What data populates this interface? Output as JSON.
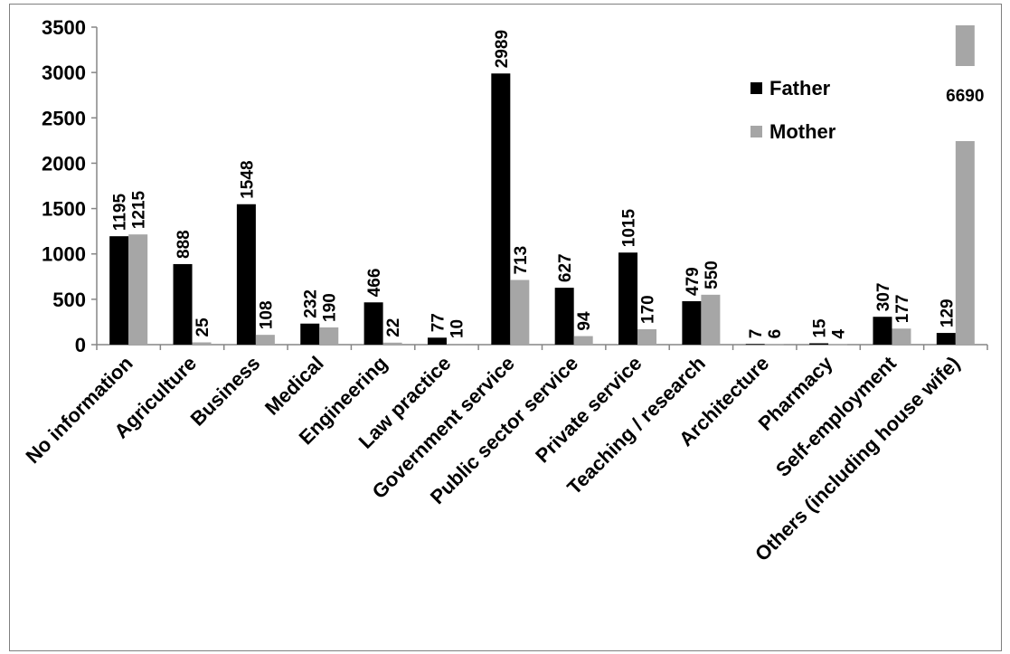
{
  "chart_data": {
    "type": "bar",
    "categories": [
      "No information",
      "Agriculture",
      "Business",
      "Medical",
      "Engineering",
      "Law practice",
      "Government service",
      "Public sector service",
      "Private service",
      "Teaching / research",
      "Architecture",
      "Pharmacy",
      "Self-employment",
      "Others (including house wife)"
    ],
    "series": [
      {
        "name": "Father",
        "color": "#000000",
        "values": [
          1195,
          888,
          1548,
          232,
          466,
          77,
          2989,
          627,
          1015,
          479,
          7,
          15,
          307,
          129
        ]
      },
      {
        "name": "Mother",
        "color": "#a6a6a6",
        "values": [
          1215,
          25,
          108,
          190,
          22,
          10,
          713,
          94,
          170,
          550,
          6,
          4,
          177,
          6690
        ]
      }
    ],
    "ylim": [
      0,
      3500
    ],
    "yticks": [
      0,
      500,
      1000,
      1500,
      2000,
      2500,
      3000,
      3500
    ],
    "axis_break": {
      "series": "Mother",
      "category": "Others (including house wife)"
    },
    "legend_position": "top-right",
    "grid": false
  }
}
